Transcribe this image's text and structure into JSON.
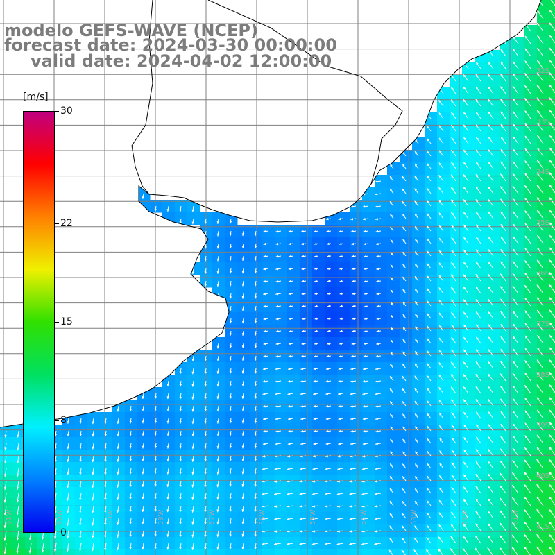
{
  "title": {
    "line1": "modelo GEFS-WAVE (NCEP)",
    "line2": "forecast date: 2024-03-30 00:00:00",
    "line3": "valid date: 2024-04-02 12:00:00"
  },
  "colorbar": {
    "unit": "[m/s]",
    "min": 0,
    "max": 30,
    "ticks": [
      {
        "value": 30,
        "label": "30"
      },
      {
        "value": 22,
        "label": "22"
      },
      {
        "value": 15,
        "label": "15"
      },
      {
        "value": 8,
        "label": "8"
      },
      {
        "value": 0,
        "label": "0"
      }
    ],
    "colors": [
      "#0000f0",
      "#0080ff",
      "#00f0ff",
      "#00e060",
      "#30e000",
      "#f0f000",
      "#ff8000",
      "#ff0000",
      "#c00080"
    ]
  },
  "map": {
    "region": "South Atlantic, Rio de la Plata / Uruguay / southern Brazil coast",
    "land_color": "#ffffff",
    "coastline_color": "#000000",
    "grid_color": "#7f7f7f",
    "vector_color": "#ffffff",
    "lat_labels": [
      "32S",
      "33S",
      "34S",
      "35S",
      "36S",
      "37S",
      "38S",
      "39S",
      "40S",
      "41S"
    ],
    "lon_labels": [
      "61W",
      "60W",
      "59W",
      "58W",
      "57W",
      "56W",
      "55W",
      "54W",
      "53W",
      "52W",
      "51W"
    ]
  }
}
